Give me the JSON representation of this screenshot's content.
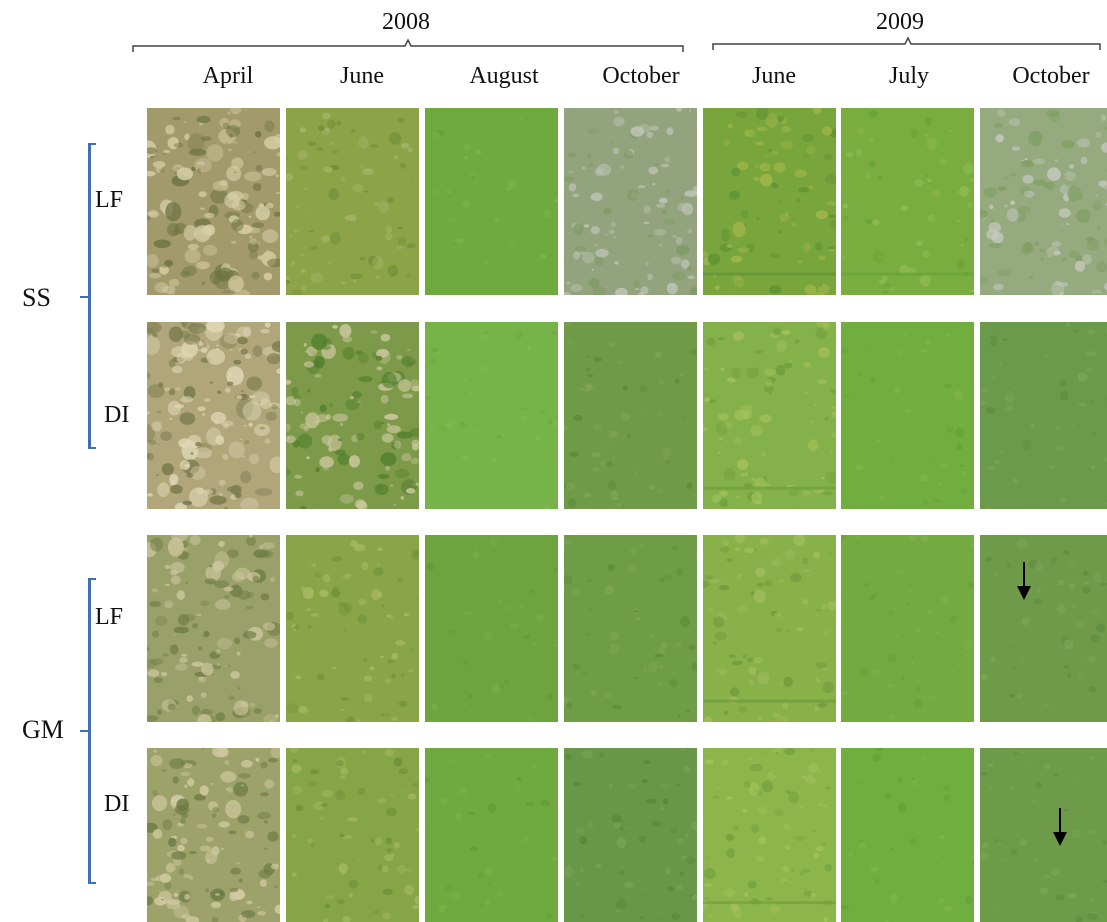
{
  "years": [
    {
      "label": "2008"
    },
    {
      "label": "2009"
    }
  ],
  "months": [
    "April",
    "June",
    "August",
    "October",
    "June",
    "July",
    "October"
  ],
  "groups": [
    {
      "label": "SS",
      "rows": [
        {
          "label": "LF"
        },
        {
          "label": "DI"
        }
      ]
    },
    {
      "label": "GM",
      "rows": [
        {
          "label": "LF"
        },
        {
          "label": "DI"
        }
      ]
    }
  ],
  "tiles": [
    [
      {
        "base": "#a39a6c",
        "spot": "#d7cfa6",
        "dark": "#6e7442",
        "cover": 0.55
      },
      {
        "base": "#8ca348",
        "spot": "#a9b66a",
        "dark": "#6f8d38",
        "cover": 0.25
      },
      {
        "base": "#6faa3e",
        "spot": "#7bb448",
        "dark": "#62a037",
        "cover": 0.05
      },
      {
        "base": "#93a37e",
        "spot": "#c0c6b8",
        "dark": "#7f9a64",
        "cover": 0.35
      },
      {
        "base": "#78a53c",
        "spot": "#a3b84b",
        "dark": "#5f9233",
        "cover": 0.3
      },
      {
        "base": "#79ad40",
        "spot": "#92bb55",
        "dark": "#67a137",
        "cover": 0.15
      },
      {
        "base": "#95aa7e",
        "spot": "#c6cac0",
        "dark": "#7e9f62",
        "cover": 0.35
      }
    ],
    [
      {
        "base": "#b0a67a",
        "spot": "#e0d8b6",
        "dark": "#787a4c",
        "cover": 0.6
      },
      {
        "base": "#7d9a4a",
        "spot": "#cfc9a0",
        "dark": "#4f7d2c",
        "cover": 0.45
      },
      {
        "base": "#76b44a",
        "spot": "#80ba52",
        "dark": "#6aa742",
        "cover": 0.05
      },
      {
        "base": "#6f9a48",
        "spot": "#7ea556",
        "dark": "#5c8a3a",
        "cover": 0.15
      },
      {
        "base": "#84b14a",
        "spot": "#a6c25c",
        "dark": "#6d9d3b",
        "cover": 0.3
      },
      {
        "base": "#72ad3f",
        "spot": "#7fb64a",
        "dark": "#65a037",
        "cover": 0.08
      },
      {
        "base": "#6c9a4b",
        "spot": "#7ba55a",
        "dark": "#5e8d40",
        "cover": 0.12
      }
    ],
    [
      {
        "base": "#9aa069",
        "spot": "#cdc79f",
        "dark": "#6e7d45",
        "cover": 0.45
      },
      {
        "base": "#8aa547",
        "spot": "#aabb68",
        "dark": "#6f9039",
        "cover": 0.22
      },
      {
        "base": "#6ea43e",
        "spot": "#79ad47",
        "dark": "#629838",
        "cover": 0.06
      },
      {
        "base": "#6f9c46",
        "spot": "#7ea654",
        "dark": "#5e8c3a",
        "cover": 0.12
      },
      {
        "base": "#88b14a",
        "spot": "#a0bd5c",
        "dark": "#6f9a3c",
        "cover": 0.25
      },
      {
        "base": "#74ab40",
        "spot": "#80b24b",
        "dark": "#67a038",
        "cover": 0.08
      },
      {
        "base": "#6e9a4a",
        "spot": "#7ca458",
        "dark": "#5d8b3e",
        "cover": 0.12
      }
    ],
    [
      {
        "base": "#9da26b",
        "spot": "#d2cba2",
        "dark": "#6c7b44",
        "cover": 0.45
      },
      {
        "base": "#86a546",
        "spot": "#a2b863",
        "dark": "#6c8f38",
        "cover": 0.2
      },
      {
        "base": "#6fa93f",
        "spot": "#7ab149",
        "dark": "#629c38",
        "cover": 0.06
      },
      {
        "base": "#689748",
        "spot": "#78a356",
        "dark": "#578738",
        "cover": 0.15
      },
      {
        "base": "#8cb64c",
        "spot": "#a6c25e",
        "dark": "#73a03f",
        "cover": 0.25
      },
      {
        "base": "#70ae3f",
        "spot": "#7cb64a",
        "dark": "#63a036",
        "cover": 0.07
      },
      {
        "base": "#6d9b4a",
        "spot": "#7ba658",
        "dark": "#5d8c3d",
        "cover": 0.12
      }
    ]
  ]
}
